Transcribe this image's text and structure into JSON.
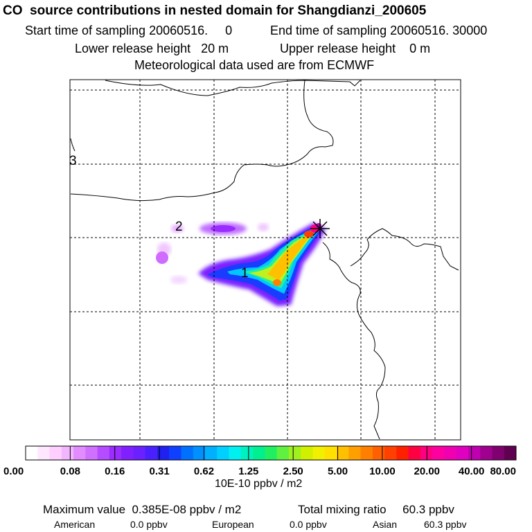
{
  "header": {
    "title": "CO  source contributions in nested domain for Shangdianzi_200605",
    "start": "Start time of sampling 20060516.     0",
    "end": "End time of sampling 20060516. 30000",
    "lower": "Lower release height   20 m",
    "upper": "Upper release height    0 m",
    "met": "Meteorological data used are from ECMWF"
  },
  "map": {
    "grid_labels": [
      "3",
      "2",
      "1"
    ],
    "receptor_marker": "star"
  },
  "chart_data": {
    "type": "heatmap",
    "colorbar_ticks": [
      "0.00",
      "0.08",
      "0.16",
      "0.31",
      "0.62",
      "1.25",
      "2.50",
      "5.00",
      "10.00",
      "20.00",
      "40.00",
      "80.00"
    ],
    "colorbar_colors": [
      "#ffffff",
      "#ffe8ff",
      "#ffd0ff",
      "#f2b6ff",
      "#e28cff",
      "#d070ff",
      "#b54cff",
      "#9a2cff",
      "#8020ff",
      "#6a20ff",
      "#4a20ff",
      "#2020f0",
      "#1040ff",
      "#0070ff",
      "#0090ff",
      "#00b0ff",
      "#00d0ff",
      "#00f0f0",
      "#00f0c0",
      "#00f090",
      "#20f060",
      "#60f040",
      "#a0f020",
      "#d0f000",
      "#f0f000",
      "#ffe000",
      "#ffc000",
      "#ffa000",
      "#ff8000",
      "#ff6000",
      "#ff4000",
      "#ff2000",
      "#ff0040",
      "#ff0080",
      "#ff00a0",
      "#f000b0",
      "#e000c0",
      "#c000b0",
      "#a00090",
      "#800070",
      "#600050"
    ],
    "unit": "10E-10 ppbv / m2"
  },
  "footer": {
    "max_value": "Maximum value  0.385E-08 ppbv / m2",
    "total": "Total mixing ratio     60.3 ppbv",
    "american_label": "American",
    "american_value": "0.0 ppbv",
    "european_label": "European",
    "european_value": "0.0 ppbv",
    "asian_label": "Asian",
    "asian_value": "60.3 ppbv"
  }
}
